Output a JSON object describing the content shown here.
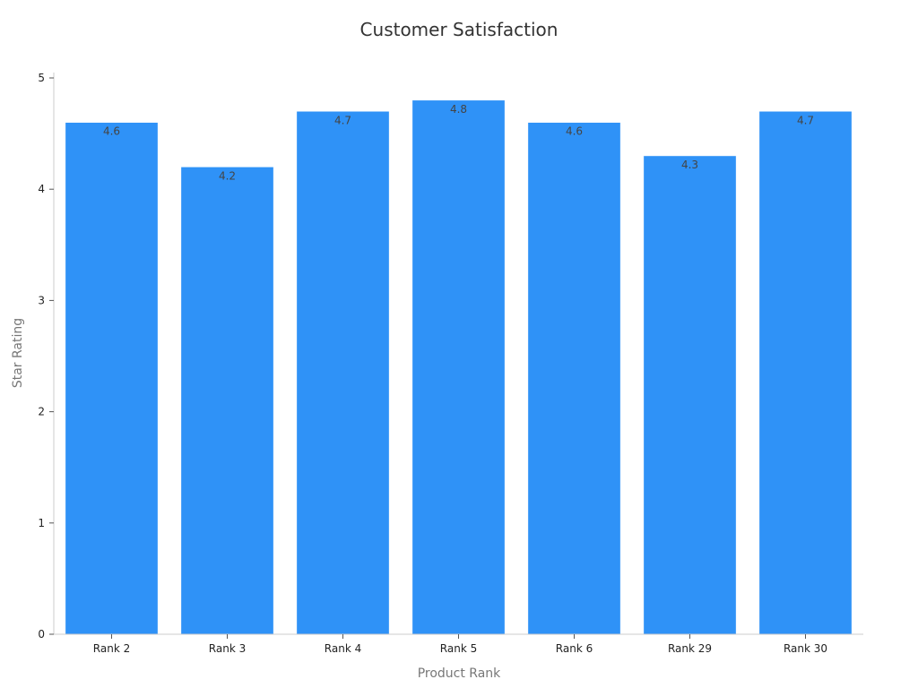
{
  "chart_data": {
    "type": "bar",
    "title": "Customer Satisfaction",
    "xlabel": "Product Rank",
    "ylabel": "Star Rating",
    "categories": [
      "Rank 2",
      "Rank 3",
      "Rank 4",
      "Rank 5",
      "Rank 6",
      "Rank 29",
      "Rank 30"
    ],
    "values": [
      4.6,
      4.2,
      4.7,
      4.8,
      4.6,
      4.3,
      4.7
    ],
    "data_labels": [
      "4.6",
      "4.2",
      "4.7",
      "4.8",
      "4.6",
      "4.3",
      "4.7"
    ],
    "ylim": [
      0,
      5
    ],
    "yticks": [
      "0",
      "1",
      "2",
      "3",
      "4",
      "5"
    ],
    "grid": false,
    "legend": "none",
    "bar_color": "#2f92f7"
  }
}
